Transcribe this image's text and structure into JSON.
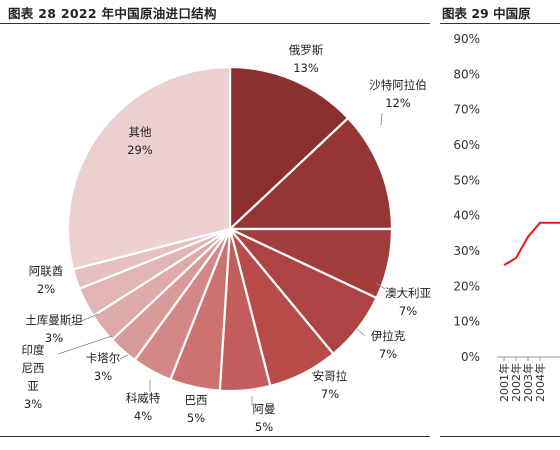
{
  "header": {
    "left_title": "图表 28 2022 年中国原油进口结构",
    "right_title": "图表 29 中国原"
  },
  "chart_data": [
    {
      "type": "pie",
      "title": "图表 28 2022 年中国原油进口结构",
      "slices": [
        {
          "label": "俄罗斯",
          "value": 13,
          "display": "13%",
          "color": "#8b2f2f"
        },
        {
          "label": "沙特阿拉伯",
          "value": 12,
          "display": "12%",
          "color": "#963535"
        },
        {
          "label": "澳大利亚",
          "value": 7,
          "display": "7%",
          "color": "#a23d3c"
        },
        {
          "label": "伊拉克",
          "value": 7,
          "display": "7%",
          "color": "#ad4443"
        },
        {
          "label": "安哥拉",
          "value": 7,
          "display": "7%",
          "color": "#b84c4a"
        },
        {
          "label": "阿曼",
          "value": 5,
          "display": "5%",
          "color": "#c35d5b"
        },
        {
          "label": "巴西",
          "value": 5,
          "display": "5%",
          "color": "#cc7271"
        },
        {
          "label": "科威特",
          "value": 4,
          "display": "4%",
          "color": "#d38887"
        },
        {
          "label": "卡塔尔",
          "value": 3,
          "display": "3%",
          "color": "#d99a9a"
        },
        {
          "label": "印度尼西亚",
          "value": 3,
          "display": "3%",
          "color": "#dea9a9"
        },
        {
          "label": "土库曼斯坦",
          "value": 3,
          "display": "3%",
          "color": "#e2b5b5"
        },
        {
          "label": "阿联酋",
          "value": 2,
          "display": "2%",
          "color": "#e6bfbf"
        },
        {
          "label": "其他",
          "value": 29,
          "display": "29%",
          "color": "#ecd0d0"
        }
      ]
    },
    {
      "type": "line",
      "title": "图表 29 中国原",
      "y_ticks": [
        "90%",
        "80%",
        "70%",
        "60%",
        "50%",
        "40%",
        "30%",
        "20%",
        "10%",
        "0%"
      ],
      "ylim": [
        0,
        90
      ],
      "x": [
        "2001年",
        "2002年",
        "2003年",
        "2004年"
      ],
      "series": [
        {
          "values": [
            26,
            28,
            34,
            38
          ],
          "color": "#e41a1c"
        }
      ]
    }
  ]
}
